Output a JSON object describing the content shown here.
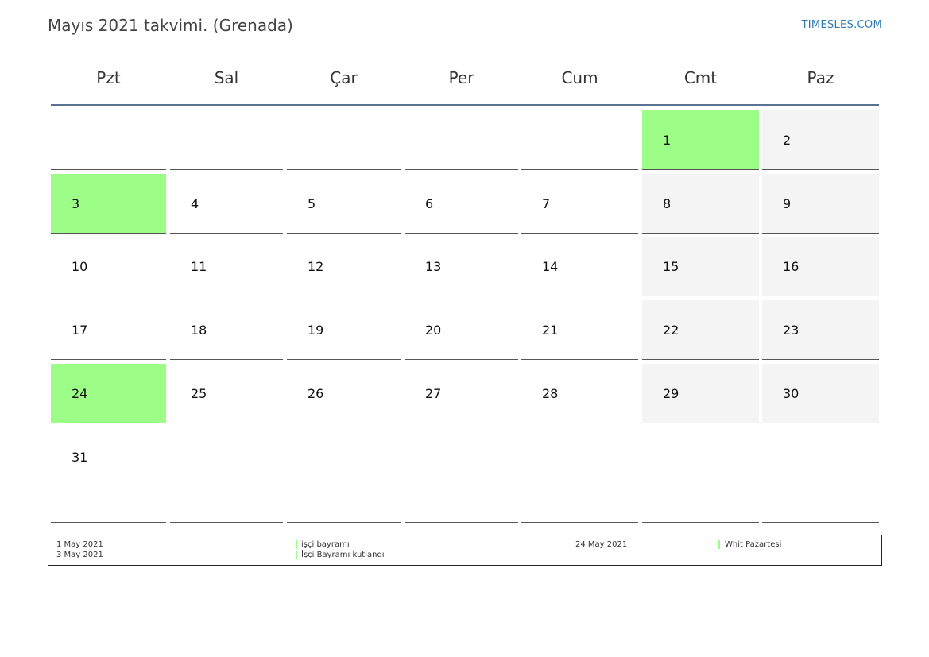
{
  "page": {
    "title": "Mayıs 2021 takvimi. (Grenada)",
    "site": "TIMESLES.COM"
  },
  "weekdays": [
    "Pzt",
    "Sal",
    "Çar",
    "Per",
    "Cum",
    "Cmt",
    "Paz"
  ],
  "weeks": [
    [
      null,
      null,
      null,
      null,
      null,
      {
        "day": "1",
        "type": "holiday"
      },
      {
        "day": "2",
        "type": "weekend"
      }
    ],
    [
      {
        "day": "3",
        "type": "holiday"
      },
      {
        "day": "4",
        "type": "normal"
      },
      {
        "day": "5",
        "type": "normal"
      },
      {
        "day": "6",
        "type": "normal"
      },
      {
        "day": "7",
        "type": "normal"
      },
      {
        "day": "8",
        "type": "weekend"
      },
      {
        "day": "9",
        "type": "weekend"
      }
    ],
    [
      {
        "day": "10",
        "type": "normal"
      },
      {
        "day": "11",
        "type": "normal"
      },
      {
        "day": "12",
        "type": "normal"
      },
      {
        "day": "13",
        "type": "normal"
      },
      {
        "day": "14",
        "type": "normal"
      },
      {
        "day": "15",
        "type": "weekend"
      },
      {
        "day": "16",
        "type": "weekend"
      }
    ],
    [
      {
        "day": "17",
        "type": "normal"
      },
      {
        "day": "18",
        "type": "normal"
      },
      {
        "day": "19",
        "type": "normal"
      },
      {
        "day": "20",
        "type": "normal"
      },
      {
        "day": "21",
        "type": "normal"
      },
      {
        "day": "22",
        "type": "weekend"
      },
      {
        "day": "23",
        "type": "weekend"
      }
    ],
    [
      {
        "day": "24",
        "type": "holiday"
      },
      {
        "day": "25",
        "type": "normal"
      },
      {
        "day": "26",
        "type": "normal"
      },
      {
        "day": "27",
        "type": "normal"
      },
      {
        "day": "28",
        "type": "normal"
      },
      {
        "day": "29",
        "type": "weekend"
      },
      {
        "day": "30",
        "type": "weekend"
      }
    ],
    [
      {
        "day": "31",
        "type": "normal"
      },
      null,
      null,
      null,
      null,
      null,
      null
    ]
  ],
  "holidays": [
    {
      "date": "1 May 2021",
      "name": "işçi bayramı"
    },
    {
      "date": "3 May 2021",
      "name": "İşçi Bayramı kutlandı"
    },
    {
      "date": "24 May 2021",
      "name": "Whit Pazartesi"
    }
  ],
  "colors": {
    "holiday": "#9dfe87",
    "weekend": "#f4f4f4",
    "header_line": "#5a7394",
    "site_link": "#2a7ab8"
  }
}
